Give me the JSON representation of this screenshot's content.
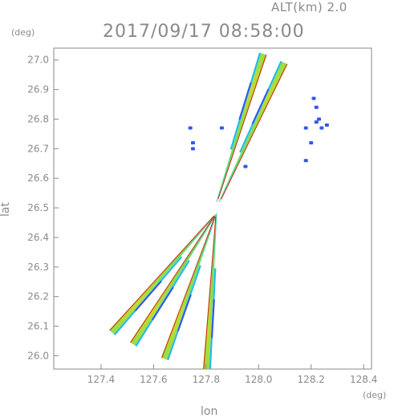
{
  "header": {
    "altitude_label": "ALT(km) 2.0",
    "timestamp": "2017/09/17 08:58:00",
    "y_unit": "(deg)",
    "x_unit": "(deg)"
  },
  "chart_data": {
    "type": "scatter",
    "title": "2017/09/17 08:58:00",
    "xlabel": "lon",
    "ylabel": "lat",
    "xlim": [
      127.22,
      128.43
    ],
    "ylim": [
      25.955,
      27.04
    ],
    "x_ticks": [
      "127.4",
      "127.6",
      "127.8",
      "128.0",
      "128.2",
      "128.4"
    ],
    "y_ticks": [
      "26.0",
      "26.1",
      "26.2",
      "26.3",
      "26.4",
      "26.5",
      "26.6",
      "26.7",
      "26.8",
      "26.9",
      "27.0"
    ],
    "grid": false,
    "colors": {
      "low": "#3355ee",
      "mid_low": "#22bbee",
      "mid": "#55dd88",
      "mid_high": "#aadd33",
      "high": "#dd2211"
    },
    "radar_beams": [
      {
        "from": [
          127.84,
          26.52
        ],
        "to": [
          128.02,
          27.02
        ]
      },
      {
        "from": [
          127.85,
          26.52
        ],
        "to": [
          128.1,
          26.99
        ]
      },
      {
        "from": [
          127.84,
          26.48
        ],
        "to": [
          127.44,
          26.08
        ]
      },
      {
        "from": [
          127.84,
          26.48
        ],
        "to": [
          127.52,
          26.04
        ]
      },
      {
        "from": [
          127.84,
          26.48
        ],
        "to": [
          127.64,
          25.99
        ]
      },
      {
        "from": [
          127.84,
          26.48
        ],
        "to": [
          127.8,
          25.955
        ]
      }
    ],
    "echo_points": [
      {
        "lon": 127.74,
        "lat": 26.77
      },
      {
        "lon": 127.75,
        "lat": 26.72
      },
      {
        "lon": 127.75,
        "lat": 26.7
      },
      {
        "lon": 127.86,
        "lat": 26.77
      },
      {
        "lon": 127.95,
        "lat": 26.64
      },
      {
        "lon": 128.21,
        "lat": 26.87
      },
      {
        "lon": 128.22,
        "lat": 26.84
      },
      {
        "lon": 128.23,
        "lat": 26.8
      },
      {
        "lon": 128.22,
        "lat": 26.79
      },
      {
        "lon": 128.26,
        "lat": 26.78
      },
      {
        "lon": 128.24,
        "lat": 26.77
      },
      {
        "lon": 128.18,
        "lat": 26.77
      },
      {
        "lon": 128.2,
        "lat": 26.72
      },
      {
        "lon": 128.18,
        "lat": 26.66
      }
    ]
  }
}
